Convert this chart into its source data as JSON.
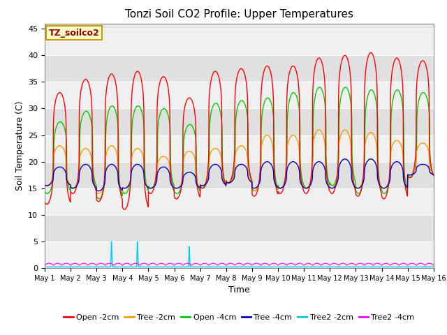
{
  "title": "Tonzi Soil CO2 Profile: Upper Temperatures",
  "xlabel": "Time",
  "ylabel": "Soil Temperature (C)",
  "n_days": 15,
  "ylim": [
    0,
    46
  ],
  "yticks": [
    0,
    5,
    10,
    15,
    20,
    25,
    30,
    35,
    40,
    45
  ],
  "bg_light": "#f0f0f0",
  "bg_dark": "#d8d8d8",
  "series_colors": {
    "Open-2cm": "#ff0000",
    "Tree-2cm": "#ff9900",
    "Open-4cm": "#00cc00",
    "Tree-4cm": "#0000cc",
    "Tree2-2cm": "#00ccff",
    "Tree2-4cm": "#ff00ff"
  },
  "legend_label": "TZ_soilco2",
  "legend_box_facecolor": "#ffffcc",
  "legend_box_edgecolor": "#cc9900",
  "n_points_per_day": 144,
  "open2_peaks": [
    33,
    35.5,
    36.5,
    37,
    36,
    32,
    37,
    37.5,
    38,
    38,
    39.5,
    40,
    40.5,
    39.5,
    39
  ],
  "open2_troughs": [
    12,
    14,
    12.5,
    11,
    14,
    13,
    15,
    16,
    13.5,
    14,
    14,
    14,
    13.5,
    13,
    17
  ],
  "tree2_peaks": [
    23,
    22.5,
    23,
    22.5,
    21,
    22,
    22.5,
    23,
    25,
    25,
    26,
    26,
    25.5,
    24,
    23.5
  ],
  "tree2_troughs": [
    15.5,
    15,
    14,
    15,
    15,
    15,
    15.5,
    16,
    14.5,
    15,
    15,
    15,
    15,
    15,
    17.5
  ],
  "open4_peaks": [
    27.5,
    29.5,
    30.5,
    30.5,
    30,
    27,
    31,
    31.5,
    32,
    33,
    34,
    34,
    33.5,
    33.5,
    33
  ],
  "open4_troughs": [
    14,
    15,
    13,
    14,
    15,
    14,
    15,
    16,
    14.5,
    15,
    15,
    15.5,
    14,
    14,
    17
  ],
  "tree4_peaks": [
    19,
    19.5,
    19.5,
    19.5,
    19,
    18,
    19.5,
    19.5,
    20,
    20,
    20,
    20.5,
    20.5,
    20,
    19.5
  ],
  "tree4_troughs": [
    15.5,
    15,
    14.5,
    15,
    15,
    15,
    15.5,
    16,
    15,
    15,
    15,
    15,
    15,
    15,
    17.5
  ],
  "tree2_2cm_spike_days": [
    3,
    4,
    6
  ],
  "tree2_2cm_spike_vals": [
    5.0,
    5.0,
    4.0
  ],
  "tree2_4cm_base": 0.5,
  "tree2_4cm_amp": 0.4
}
